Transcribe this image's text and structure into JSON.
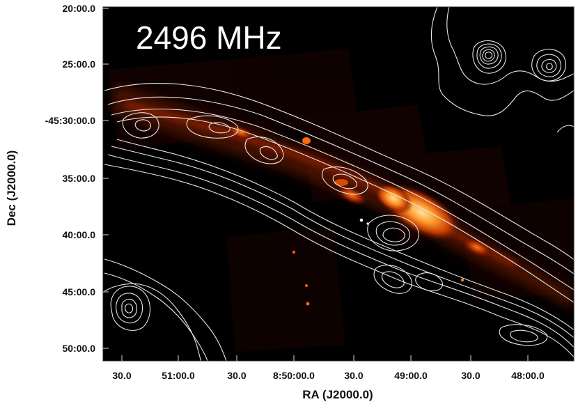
{
  "image": {
    "label": "2496 MHz",
    "background_color": "#000000",
    "emission_colors": [
      "#3a0a00",
      "#a32800",
      "#ff7a1a",
      "#ffd27a"
    ],
    "contour_color": "#e8e8e8"
  },
  "axes": {
    "xlabel": "RA (J2000.0)",
    "ylabel": "Dec (J2000.0)",
    "x_ticks": [
      "30.0",
      "51:00.0",
      "30.0",
      "8:50:00.0",
      "30.0",
      "49:00.0",
      "30.0",
      "48:00.0"
    ],
    "y_ticks": [
      "20:00.0",
      "25:00.0",
      "-45:30:00.0",
      "35:00.0",
      "40:00.0",
      "45:00.0",
      "50:00.0"
    ]
  }
}
